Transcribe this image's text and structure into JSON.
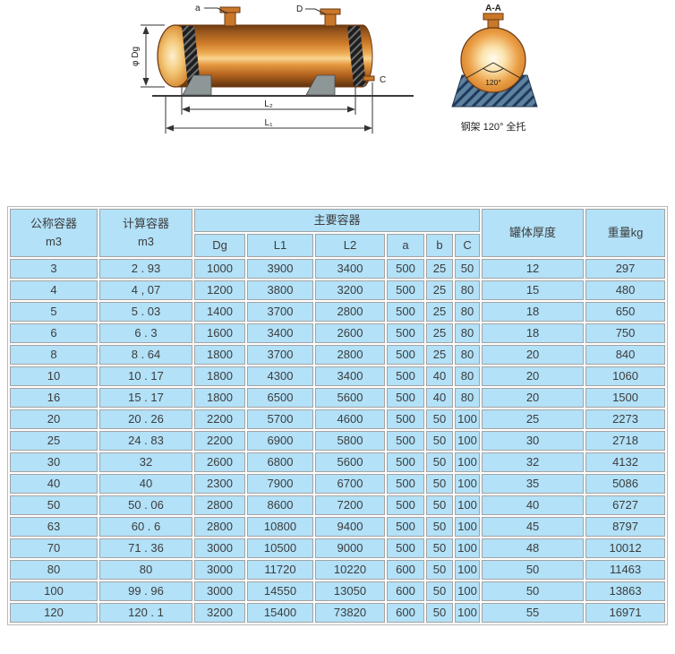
{
  "colors": {
    "cell_fill": "#B2E1F8",
    "cell_border": "#A3A3A3",
    "tank_copper": "#C9782A",
    "saddle_gray": "#8E9798",
    "section_base_blue": "#5D82A0"
  },
  "drawing": {
    "side": {
      "nozzle_a_label": "a",
      "nozzle_d_label": "D",
      "diameter_label": "φ Dg",
      "drain_label": "C",
      "dim_l2_label": "L₂",
      "dim_l1_label": "L₁"
    },
    "section": {
      "title": "A-A",
      "angle_label": "120°",
      "caption": "钢架 120° 全托"
    }
  },
  "table": {
    "header": {
      "col1_title": "公称容器",
      "col1_unit": "m3",
      "col2_title": "计算容器",
      "col2_unit": "m3",
      "group_title": "主要容器",
      "sub_cols": [
        "Dg",
        "L1",
        "L2",
        "a",
        "b",
        "C"
      ],
      "thickness": "罐体厚度",
      "weight": "重量kg"
    },
    "rows": [
      [
        "3",
        "2 . 93",
        "1000",
        "3900",
        "3400",
        "500",
        "25",
        "50",
        "12",
        "297"
      ],
      [
        "4",
        "4 , 07",
        "1200",
        "3800",
        "3200",
        "500",
        "25",
        "80",
        "15",
        "480"
      ],
      [
        "5",
        "5 . 03",
        "1400",
        "3700",
        "2800",
        "500",
        "25",
        "80",
        "18",
        "650"
      ],
      [
        "6",
        "6 . 3",
        "1600",
        "3400",
        "2600",
        "500",
        "25",
        "80",
        "18",
        "750"
      ],
      [
        "8",
        "8 . 64",
        "1800",
        "3700",
        "2800",
        "500",
        "25",
        "80",
        "20",
        "840"
      ],
      [
        "10",
        "10 . 17",
        "1800",
        "4300",
        "3400",
        "500",
        "40",
        "80",
        "20",
        "1060"
      ],
      [
        "16",
        "15 . 17",
        "1800",
        "6500",
        "5600",
        "500",
        "40",
        "80",
        "20",
        "1500"
      ],
      [
        "20",
        "20 . 26",
        "2200",
        "5700",
        "4600",
        "500",
        "50",
        "100",
        "25",
        "2273"
      ],
      [
        "25",
        "24 . 83",
        "2200",
        "6900",
        "5800",
        "500",
        "50",
        "100",
        "30",
        "2718"
      ],
      [
        "30",
        "32",
        "2600",
        "6800",
        "5600",
        "500",
        "50",
        "100",
        "32",
        "4132"
      ],
      [
        "40",
        "40",
        "2300",
        "7900",
        "6700",
        "500",
        "50",
        "100",
        "35",
        "5086"
      ],
      [
        "50",
        "50 . 06",
        "2800",
        "8600",
        "7200",
        "500",
        "50",
        "100",
        "40",
        "6727"
      ],
      [
        "63",
        "60 . 6",
        "2800",
        "10800",
        "9400",
        "500",
        "50",
        "100",
        "45",
        "8797"
      ],
      [
        "70",
        "71 . 36",
        "3000",
        "10500",
        "9000",
        "500",
        "50",
        "100",
        "48",
        "10012"
      ],
      [
        "80",
        "80",
        "3000",
        "11720",
        "10220",
        "600",
        "50",
        "100",
        "50",
        "11463"
      ],
      [
        "100",
        "99 . 96",
        "3000",
        "14550",
        "13050",
        "600",
        "50",
        "100",
        "50",
        "13863"
      ],
      [
        "120",
        "120 . 1",
        "3200",
        "15400",
        "73820",
        "600",
        "50",
        "100",
        "55",
        "16971"
      ]
    ]
  }
}
